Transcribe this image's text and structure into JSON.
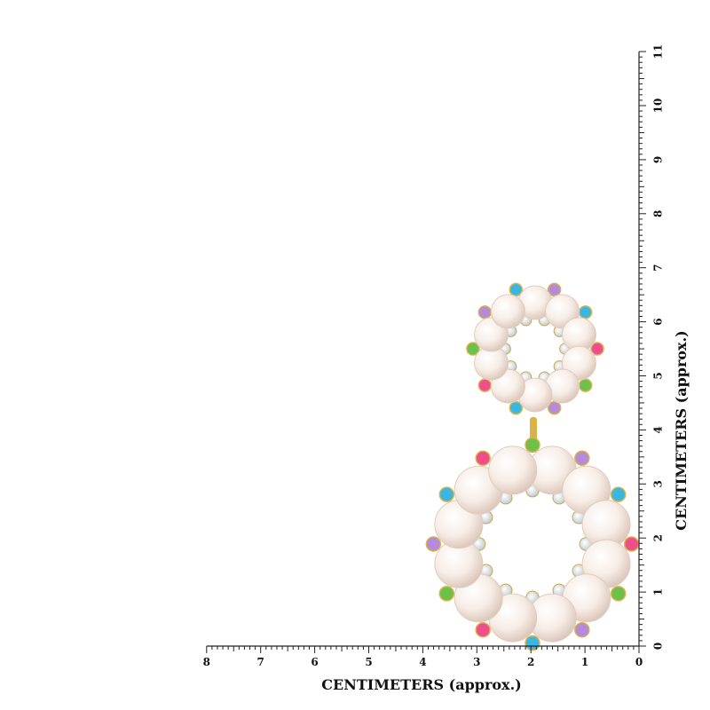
{
  "rulers": {
    "horizontal": {
      "label": "CENTIMETERS (approx.)",
      "ticks": [
        8,
        7,
        6,
        5,
        4,
        3,
        2,
        1,
        0
      ]
    },
    "vertical": {
      "label": "CENTIMETERS (approx.)",
      "ticks": [
        0,
        1,
        2,
        3,
        4,
        5,
        6,
        7,
        8,
        9,
        10,
        11
      ]
    }
  }
}
